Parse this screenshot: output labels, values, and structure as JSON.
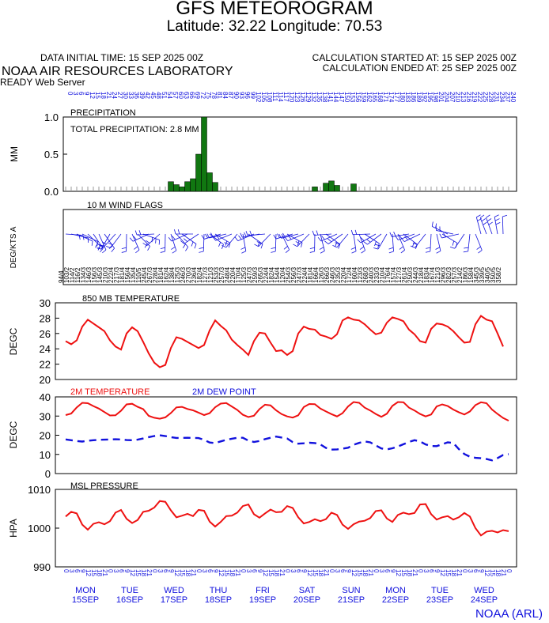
{
  "header": {
    "title": "GFS METEOROGRAM",
    "subtitle": "Latitude: 32.22 Longitude:  70.53",
    "init_time": "DATA INITIAL TIME: 15 SEP 2025 00Z",
    "calc_started": "CALCULATION STARTED AT: 15 SEP 2025 00Z",
    "calc_ended": "CALCULATION ENDED AT: 25 SEP 2025 00Z",
    "org": "NOAA AIR RESOURCES LABORATORY",
    "server": "READY Web Server",
    "credit": "NOAA (ARL)"
  },
  "colors": {
    "red": "#ee1111",
    "blue": "#1111dd",
    "green": "#117711"
  },
  "chart_data": [
    {
      "type": "bar",
      "title": "PRECIPITATION",
      "annotation": "TOTAL PRECIPITATION:   2.8 MM",
      "ylabel": "MM",
      "ylim": [
        0,
        1.0
      ],
      "yticks": [
        "0.0",
        "0.5",
        "1.0"
      ],
      "forecast_hours": [
        "0",
        "3",
        "6",
        "9",
        "12",
        "15",
        "18",
        "21",
        "24",
        "27",
        "30",
        "33",
        "36",
        "39",
        "42",
        "45",
        "48",
        "51",
        "54",
        "57",
        "60",
        "63",
        "66",
        "69",
        "72",
        "75",
        "78",
        "81",
        "84",
        "87",
        "90",
        "93",
        "96",
        "99",
        "102",
        "105",
        "108",
        "111",
        "114",
        "117",
        "120",
        "123",
        "126",
        "129",
        "132",
        "135",
        "138",
        "141",
        "144",
        "147",
        "150",
        "153",
        "156",
        "159",
        "162",
        "165",
        "168",
        "171",
        "174",
        "177",
        "180",
        "183",
        "186",
        "189",
        "192",
        "195",
        "198",
        "201",
        "204",
        "207",
        "210",
        "213",
        "216",
        "219",
        "222",
        "225",
        "228",
        "231",
        "234",
        "237",
        "240"
      ],
      "values": [
        0,
        0,
        0,
        0,
        0,
        0,
        0,
        0,
        0,
        0,
        0,
        0,
        0,
        0,
        0,
        0,
        0,
        0,
        0,
        0.13,
        0.09,
        0.06,
        0.13,
        0.17,
        0.5,
        1.0,
        0.25,
        0.12,
        0,
        0,
        0,
        0,
        0,
        0,
        0,
        0,
        0,
        0,
        0,
        0,
        0,
        0,
        0,
        0,
        0,
        0.06,
        0,
        0.11,
        0.14,
        0.08,
        0,
        0,
        0.1,
        0,
        0,
        0,
        0,
        0,
        0,
        0,
        0,
        0,
        0,
        0,
        0,
        0,
        0,
        0,
        0,
        0,
        0,
        0,
        0,
        0,
        0,
        0,
        0,
        0,
        0,
        0,
        0
      ]
    },
    {
      "type": "wind-barbs",
      "title": "10 M  WIND FLAGS",
      "ylabel": "DEG/KTS  A",
      "barbs": [
        {
          "dir": 94,
          "spd": 4
        },
        {
          "dir": 103,
          "spd": 2
        },
        {
          "dir": 114,
          "spd": 2
        },
        {
          "dir": 116,
          "spd": 2
        },
        {
          "dir": 134,
          "spd": 3
        },
        {
          "dir": 146,
          "spd": 3
        },
        {
          "dir": 156,
          "spd": 3
        },
        {
          "dir": 145,
          "spd": 3
        },
        {
          "dir": 210,
          "spd": 3
        },
        {
          "dir": 222,
          "spd": 4
        },
        {
          "dir": 217,
          "spd": 3
        },
        {
          "dir": 181,
          "spd": 4
        },
        {
          "dir": 156,
          "spd": 4
        },
        {
          "dir": 135,
          "spd": 4
        },
        {
          "dir": 110,
          "spd": 5
        },
        {
          "dir": 245,
          "spd": 4
        },
        {
          "dir": 267,
          "spd": 3
        },
        {
          "dir": 228,
          "spd": 4
        },
        {
          "dir": 181,
          "spd": 4
        },
        {
          "dir": 162,
          "spd": 4
        },
        {
          "dir": 138,
          "spd": 4
        },
        {
          "dir": 125,
          "spd": 3
        },
        {
          "dir": 246,
          "spd": 3
        },
        {
          "dir": 270,
          "spd": 3
        },
        {
          "dir": 236,
          "spd": 4
        },
        {
          "dir": 182,
          "spd": 4
        },
        {
          "dir": 127,
          "spd": 3
        },
        {
          "dir": 121,
          "spd": 3
        },
        {
          "dir": 253,
          "spd": 3
        },
        {
          "dir": 257,
          "spd": 3
        },
        {
          "dir": 248,
          "spd": 4
        },
        {
          "dir": 220,
          "spd": 4
        },
        {
          "dir": 170,
          "spd": 4
        },
        {
          "dir": 125,
          "spd": 3
        },
        {
          "dir": 247,
          "spd": 3
        },
        {
          "dir": 259,
          "spd": 3
        },
        {
          "dir": 265,
          "spd": 3
        },
        {
          "dir": 224,
          "spd": 4
        },
        {
          "dir": 182,
          "spd": 4
        },
        {
          "dir": 154,
          "spd": 4
        },
        {
          "dir": 120,
          "spd": 4
        },
        {
          "dir": 254,
          "spd": 3
        },
        {
          "dir": 256,
          "spd": 3
        },
        {
          "dir": 247,
          "spd": 3
        },
        {
          "dir": 224,
          "spd": 4
        },
        {
          "dir": 181,
          "spd": 4
        },
        {
          "dir": 166,
          "spd": 4
        },
        {
          "dir": 126,
          "spd": 3
        },
        {
          "dir": 266,
          "spd": 3
        },
        {
          "dir": 246,
          "spd": 3
        },
        {
          "dir": 235,
          "spd": 3
        },
        {
          "dir": 220,
          "spd": 4
        },
        {
          "dir": 172,
          "spd": 4
        },
        {
          "dir": 160,
          "spd": 4
        },
        {
          "dir": 123,
          "spd": 3
        },
        {
          "dir": 268,
          "spd": 3
        },
        {
          "dir": 240,
          "spd": 3
        },
        {
          "dir": 233,
          "spd": 3
        },
        {
          "dir": 210,
          "spd": 4
        },
        {
          "dir": 176,
          "spd": 4
        },
        {
          "dir": 157,
          "spd": 4
        },
        {
          "dir": 127,
          "spd": 3
        },
        {
          "dir": 261,
          "spd": 4
        },
        {
          "dir": 250,
          "spd": 3
        },
        {
          "dir": 244,
          "spd": 3
        },
        {
          "dir": 218,
          "spd": 4
        },
        {
          "dir": 183,
          "spd": 4
        },
        {
          "dir": 167,
          "spd": 4
        },
        {
          "dir": 121,
          "spd": 3
        },
        {
          "dir": 296,
          "spd": 3
        },
        {
          "dir": 282,
          "spd": 3
        },
        {
          "dir": 257,
          "spd": 3
        },
        {
          "dir": 214,
          "spd": 2
        },
        {
          "dir": 186,
          "spd": 3
        },
        {
          "dir": 158,
          "spd": 4
        },
        {
          "dir": 345,
          "spd": 3
        },
        {
          "dir": 339,
          "spd": 5
        },
        {
          "dir": 340,
          "spd": 5
        },
        {
          "dir": 350,
          "spd": 5
        },
        {
          "dir": 358,
          "spd": 2
        }
      ]
    },
    {
      "type": "line",
      "title": "850 MB  TEMPERATURE",
      "ylabel": "DEGC",
      "ylim": [
        20,
        30
      ],
      "yticks": [
        "20",
        "22",
        "24",
        "26",
        "28",
        "30"
      ],
      "values": [
        25.0,
        24.6,
        25.1,
        26.9,
        27.8,
        27.3,
        26.8,
        26.3,
        25.1,
        24.3,
        23.9,
        26.0,
        26.8,
        26.3,
        24.9,
        23.4,
        22.2,
        21.6,
        21.9,
        24.1,
        25.5,
        25.3,
        24.9,
        24.5,
        24.1,
        24.5,
        26.4,
        27.7,
        27.0,
        26.4,
        25.2,
        24.5,
        23.9,
        23.2,
        25.0,
        26.1,
        26.0,
        24.8,
        23.7,
        23.8,
        23.2,
        23.7,
        26.0,
        26.9,
        26.6,
        26.5,
        25.8,
        25.6,
        25.3,
        25.9,
        27.7,
        28.1,
        27.8,
        27.7,
        27.2,
        26.5,
        25.9,
        26.1,
        27.4,
        28.1,
        27.9,
        27.6,
        26.5,
        25.9,
        25.0,
        24.8,
        26.6,
        27.3,
        27.2,
        26.9,
        26.3,
        25.5,
        24.8,
        24.9,
        27.2,
        28.3,
        27.8,
        27.6,
        26.0,
        24.3
      ]
    },
    {
      "type": "line",
      "series": [
        {
          "name": "2M TEMPERATURE",
          "color": "#ee1111",
          "style": "solid",
          "values": [
            30.5,
            31.3,
            34.5,
            36.9,
            36.7,
            35.2,
            33.9,
            32.1,
            30.3,
            30.4,
            32.8,
            36.1,
            36.4,
            34.8,
            33.6,
            30.1,
            29.1,
            28.6,
            29.3,
            31.6,
            34.5,
            34.8,
            33.7,
            33.0,
            31.8,
            30.5,
            31.5,
            34.6,
            36.5,
            36.8,
            35.0,
            33.2,
            30.7,
            29.5,
            30.2,
            33.6,
            35.9,
            35.6,
            33.0,
            31.0,
            29.8,
            29.2,
            30.4,
            34.7,
            36.3,
            36.2,
            33.9,
            32.4,
            31.0,
            29.8,
            31.5,
            35.0,
            37.3,
            36.9,
            34.4,
            32.9,
            31.1,
            29.6,
            31.2,
            35.3,
            37.3,
            37.2,
            34.4,
            32.9,
            31.1,
            29.8,
            30.8,
            35.0,
            36.1,
            35.2,
            33.4,
            32.0,
            30.8,
            32.4,
            35.7,
            37.2,
            36.7,
            33.4,
            31.1,
            29.0,
            27.6
          ]
        },
        {
          "name": "2M  DEW POINT",
          "color": "#1111dd",
          "style": "dashed",
          "values": [
            17.8,
            17.4,
            17.0,
            16.7,
            17.1,
            17.4,
            17.6,
            17.7,
            17.8,
            17.9,
            17.8,
            17.5,
            17.4,
            17.7,
            18.3,
            19.0,
            19.6,
            20.0,
            19.6,
            19.0,
            18.6,
            18.6,
            18.7,
            18.6,
            18.5,
            17.6,
            16.2,
            15.9,
            16.8,
            17.6,
            18.2,
            18.7,
            18.7,
            17.2,
            16.5,
            17.0,
            18.0,
            18.7,
            19.3,
            18.8,
            18.3,
            16.4,
            15.6,
            15.8,
            16.1,
            15.9,
            15.2,
            13.4,
            12.5,
            12.6,
            13.0,
            13.5,
            15.0,
            16.0,
            16.8,
            16.3,
            14.7,
            13.1,
            12.6,
            13.2,
            14.1,
            15.3,
            16.5,
            17.4,
            16.8,
            15.2,
            14.4,
            14.3,
            15.3,
            16.3,
            16.0,
            12.8,
            10.2,
            8.8,
            8.2,
            8.0,
            7.6,
            6.9,
            8.1,
            9.7,
            10.1
          ]
        }
      ],
      "ylabel": "DEGC",
      "ylim": [
        0,
        40
      ],
      "yticks": [
        "0",
        "10",
        "20",
        "30",
        "40"
      ]
    },
    {
      "type": "line",
      "title": "MSL PRESSURE",
      "ylabel": "HPA",
      "ylim": [
        990,
        1010
      ],
      "yticks": [
        "990",
        "1000",
        "1010"
      ],
      "values": [
        1003.0,
        1004.2,
        1003.8,
        1000.9,
        999.6,
        1001.1,
        1001.5,
        1001.0,
        1001.8,
        1004.0,
        1004.7,
        1002.4,
        1001.3,
        1002.1,
        1004.2,
        1004.5,
        1005.3,
        1007.0,
        1006.8,
        1004.6,
        1002.8,
        1003.2,
        1003.7,
        1003.1,
        1004.7,
        1004.5,
        1001.7,
        1000.4,
        1001.6,
        1003.1,
        1003.2,
        1004.0,
        1005.7,
        1006.1,
        1003.6,
        1002.7,
        1003.8,
        1004.8,
        1004.1,
        1004.2,
        1005.7,
        1005.2,
        1002.8,
        1001.2,
        1001.6,
        1002.3,
        1001.8,
        1002.3,
        1004.0,
        1003.4,
        1000.9,
        999.8,
        1001.0,
        1001.7,
        1001.9,
        1002.6,
        1004.4,
        1004.6,
        1002.5,
        1001.6,
        1003.4,
        1004.0,
        1003.6,
        1003.9,
        1006.1,
        1006.2,
        1003.6,
        1002.2,
        1002.8,
        1003.1,
        1002.2,
        1002.8,
        1003.9,
        1003.0,
        1000.0,
        998.1,
        999.1,
        999.3,
        998.9,
        999.5,
        999.2
      ]
    }
  ],
  "time_axis": {
    "utc_hours": [
      "0",
      "3",
      "6",
      "9",
      "12",
      "15",
      "18",
      "21",
      "0",
      "3",
      "6",
      "9",
      "12",
      "15",
      "18",
      "21",
      "0",
      "3",
      "6",
      "9",
      "12",
      "15",
      "18",
      "21",
      "0",
      "3",
      "6",
      "9",
      "12",
      "15",
      "18",
      "21",
      "0",
      "3",
      "6",
      "9",
      "12",
      "15",
      "18",
      "21",
      "0",
      "3",
      "6",
      "9",
      "12",
      "15",
      "18",
      "21",
      "0",
      "3",
      "6",
      "9",
      "12",
      "15",
      "18",
      "21",
      "0",
      "3",
      "6",
      "9",
      "12",
      "15",
      "18",
      "21",
      "0",
      "3",
      "6",
      "9",
      "12",
      "15",
      "18",
      "21",
      "0",
      "3",
      "6",
      "9",
      "12",
      "15",
      "18",
      "21",
      "0"
    ],
    "days": [
      {
        "dow": "MON",
        "date": "15SEP"
      },
      {
        "dow": "TUE",
        "date": "16SEP"
      },
      {
        "dow": "WED",
        "date": "17SEP"
      },
      {
        "dow": "THU",
        "date": "18SEP"
      },
      {
        "dow": "FRI",
        "date": "19SEP"
      },
      {
        "dow": "SAT",
        "date": "20SEP"
      },
      {
        "dow": "SUN",
        "date": "21SEP"
      },
      {
        "dow": "MON",
        "date": "22SEP"
      },
      {
        "dow": "TUE",
        "date": "23SEP"
      },
      {
        "dow": "WED",
        "date": "24SEP"
      }
    ]
  }
}
